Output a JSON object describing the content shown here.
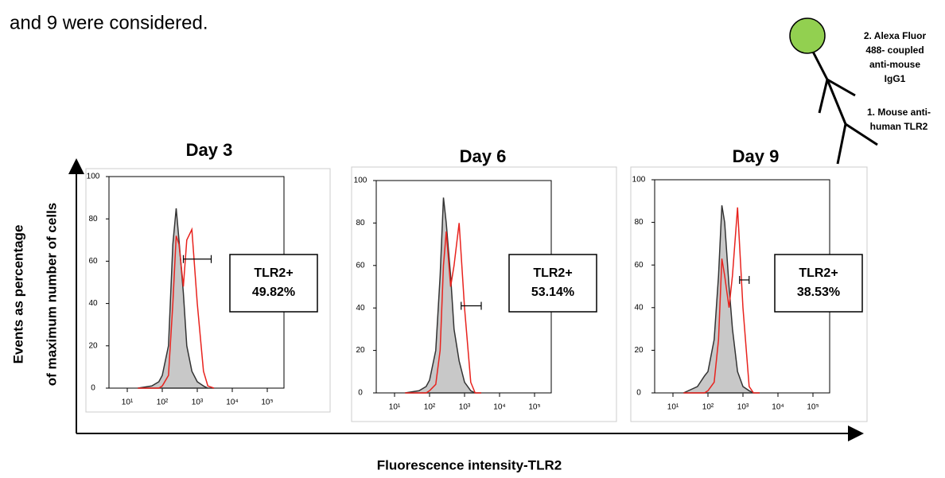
{
  "caption_fragment": "and 9 were considered.",
  "diagram": {
    "secondary_label": [
      "2. Alexa Fluor",
      "488- coupled",
      "anti-mouse",
      "IgG1"
    ],
    "primary_label": [
      "1. Mouse anti-",
      "human TLR2"
    ]
  },
  "y_axis_label": [
    "Events as percentage",
    "of maximum number of cells"
  ],
  "x_axis_label": "Fluorescence intensity-TLR2",
  "chart_data": [
    {
      "type": "histogram-overlay",
      "title": "Day 3",
      "log_x": true,
      "x": [
        20,
        50,
        80,
        100,
        150,
        200,
        250,
        300,
        400,
        500,
        700,
        1000,
        1500,
        2000,
        3000
      ],
      "series": [
        {
          "color": "#333333",
          "fill": "#c8c8c8",
          "values": [
            0,
            1,
            3,
            6,
            20,
            68,
            85,
            70,
            45,
            20,
            8,
            3,
            1,
            0,
            0
          ]
        },
        {
          "color": "#e8231e",
          "values": [
            0,
            0,
            0,
            1,
            6,
            40,
            72,
            68,
            48,
            70,
            75,
            40,
            8,
            1,
            0
          ]
        }
      ],
      "gate": {
        "range": [
          400,
          2500
        ],
        "level": 61
      },
      "annotation": [
        "TLR2+",
        "49.82%"
      ],
      "xlim": [
        3,
        300000
      ],
      "xticks": [
        {
          "value": 10,
          "label": "10¹"
        },
        {
          "value": 100,
          "label": "10²"
        },
        {
          "value": 1000,
          "label": "10³"
        },
        {
          "value": 10000,
          "label": "10⁴"
        },
        {
          "value": 100000,
          "label": "10⁵"
        }
      ],
      "ylim": [
        0,
        100
      ],
      "yticks": [
        0,
        20,
        40,
        60,
        80,
        100
      ]
    },
    {
      "type": "histogram-overlay",
      "title": "Day 6",
      "log_x": true,
      "x": [
        20,
        50,
        80,
        100,
        150,
        200,
        250,
        300,
        400,
        500,
        700,
        1000,
        1500,
        2000,
        3000
      ],
      "series": [
        {
          "color": "#333333",
          "fill": "#c8c8c8",
          "values": [
            0,
            1,
            3,
            6,
            20,
            55,
            92,
            80,
            55,
            30,
            15,
            5,
            1,
            0,
            0
          ]
        },
        {
          "color": "#e8231e",
          "values": [
            0,
            0,
            0,
            1,
            4,
            20,
            60,
            76,
            50,
            60,
            80,
            40,
            5,
            0,
            0
          ]
        }
      ],
      "gate": {
        "range": [
          800,
          3000
        ],
        "level": 41
      },
      "annotation": [
        "TLR2+",
        "53.14%"
      ],
      "xlim": [
        3,
        300000
      ],
      "xticks": [
        {
          "value": 10,
          "label": "10¹"
        },
        {
          "value": 100,
          "label": "10²"
        },
        {
          "value": 1000,
          "label": "10³"
        },
        {
          "value": 10000,
          "label": "10⁴"
        },
        {
          "value": 100000,
          "label": "10⁵"
        }
      ],
      "ylim": [
        0,
        100
      ],
      "yticks": [
        0,
        20,
        40,
        60,
        80,
        100
      ]
    },
    {
      "type": "histogram-overlay",
      "title": "Day 9",
      "log_x": true,
      "x": [
        20,
        50,
        80,
        100,
        150,
        200,
        250,
        300,
        400,
        500,
        700,
        1000,
        1500,
        2000,
        3000
      ],
      "series": [
        {
          "color": "#333333",
          "fill": "#c8c8c8",
          "values": [
            0,
            3,
            8,
            10,
            25,
            55,
            88,
            80,
            50,
            30,
            10,
            3,
            1,
            0,
            0
          ]
        },
        {
          "color": "#e8231e",
          "values": [
            0,
            0,
            0,
            1,
            5,
            25,
            63,
            55,
            40,
            55,
            87,
            40,
            3,
            0,
            0
          ]
        }
      ],
      "gate": {
        "range": [
          800,
          1500
        ],
        "level": 53
      },
      "annotation": [
        "TLR2+",
        "38.53%"
      ],
      "xlim": [
        3,
        300000
      ],
      "xticks": [
        {
          "value": 10,
          "label": "10¹"
        },
        {
          "value": 100,
          "label": "10²"
        },
        {
          "value": 1000,
          "label": "10³"
        },
        {
          "value": 10000,
          "label": "10⁴"
        },
        {
          "value": 100000,
          "label": "10⁵"
        }
      ],
      "ylim": [
        0,
        100
      ],
      "yticks": [
        0,
        20,
        40,
        60,
        80,
        100
      ]
    }
  ]
}
